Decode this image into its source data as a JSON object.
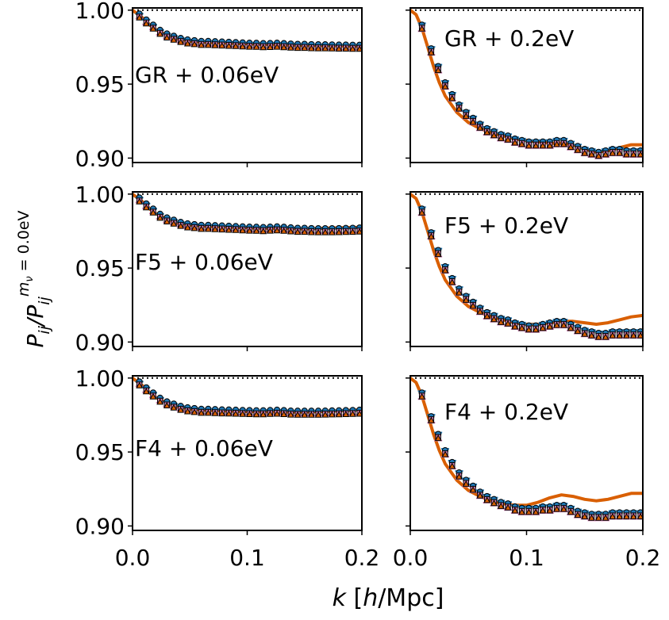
{
  "chart_data": {
    "type": "line",
    "xlabel": "k [h/Mpc]",
    "ylabel": "P_ij / P_ij^(m_nu = 0.0eV)",
    "xlim": [
      0.0,
      0.2
    ],
    "ylim": [
      0.897,
      1.0015
    ],
    "xticks": [
      "0.0",
      "0.1",
      "0.2"
    ],
    "yticks": [
      "1.00",
      "0.95",
      "0.90"
    ],
    "colors": {
      "curve": "#d95f02",
      "circle_markers": "#1f77b4",
      "square_markers": "#d47fb3",
      "triangle_markers": "#d95f02",
      "reference_line": "#000000"
    },
    "panels": [
      {
        "label": "GR + 0.06eV",
        "k": [
          0.0,
          0.005,
          0.01,
          0.015,
          0.02,
          0.03,
          0.04,
          0.05,
          0.07,
          0.09,
          0.11,
          0.13,
          0.15,
          0.17,
          0.2
        ],
        "ratio": [
          1.0,
          0.997,
          0.994,
          0.99,
          0.987,
          0.983,
          0.9805,
          0.979,
          0.978,
          0.9775,
          0.977,
          0.9765,
          0.976,
          0.976,
          0.9755
        ],
        "markers": [
          {
            "k": 0.006,
            "v": 0.9965
          },
          {
            "k": 0.012,
            "v": 0.9925
          },
          {
            "k": 0.018,
            "v": 0.989
          },
          {
            "k": 0.024,
            "v": 0.9855
          },
          {
            "k": 0.03,
            "v": 0.983
          },
          {
            "k": 0.036,
            "v": 0.9815
          },
          {
            "k": 0.042,
            "v": 0.98
          },
          {
            "k": 0.048,
            "v": 0.979
          },
          {
            "k": 0.054,
            "v": 0.9785
          },
          {
            "k": 0.06,
            "v": 0.978
          },
          {
            "k": 0.066,
            "v": 0.978
          },
          {
            "k": 0.072,
            "v": 0.9778
          },
          {
            "k": 0.078,
            "v": 0.9776
          },
          {
            "k": 0.084,
            "v": 0.9774
          },
          {
            "k": 0.09,
            "v": 0.9772
          },
          {
            "k": 0.096,
            "v": 0.977
          },
          {
            "k": 0.102,
            "v": 0.9768
          },
          {
            "k": 0.108,
            "v": 0.9767
          },
          {
            "k": 0.114,
            "v": 0.9765
          },
          {
            "k": 0.12,
            "v": 0.9766
          },
          {
            "k": 0.126,
            "v": 0.9768
          },
          {
            "k": 0.132,
            "v": 0.9765
          },
          {
            "k": 0.138,
            "v": 0.9762
          },
          {
            "k": 0.144,
            "v": 0.976
          },
          {
            "k": 0.15,
            "v": 0.976
          },
          {
            "k": 0.156,
            "v": 0.9758
          },
          {
            "k": 0.162,
            "v": 0.9757
          },
          {
            "k": 0.168,
            "v": 0.9757
          },
          {
            "k": 0.174,
            "v": 0.9756
          },
          {
            "k": 0.18,
            "v": 0.9755
          },
          {
            "k": 0.186,
            "v": 0.9755
          },
          {
            "k": 0.192,
            "v": 0.9754
          },
          {
            "k": 0.198,
            "v": 0.9754
          }
        ]
      },
      {
        "label": "GR + 0.2eV",
        "k": [
          0.0,
          0.005,
          0.01,
          0.015,
          0.02,
          0.025,
          0.03,
          0.04,
          0.05,
          0.06,
          0.07,
          0.08,
          0.09,
          0.1,
          0.11,
          0.12,
          0.13,
          0.14,
          0.15,
          0.16,
          0.17,
          0.18,
          0.19,
          0.2
        ],
        "ratio": [
          1.0,
          0.997,
          0.988,
          0.975,
          0.962,
          0.951,
          0.942,
          0.931,
          0.924,
          0.92,
          0.917,
          0.915,
          0.913,
          0.912,
          0.911,
          0.91,
          0.91,
          0.909,
          0.906,
          0.904,
          0.905,
          0.907,
          0.909,
          0.909
        ],
        "markers": [
          {
            "k": 0.01,
            "v": 0.989
          },
          {
            "k": 0.018,
            "v": 0.973
          },
          {
            "k": 0.024,
            "v": 0.961
          },
          {
            "k": 0.03,
            "v": 0.95
          },
          {
            "k": 0.036,
            "v": 0.942
          },
          {
            "k": 0.042,
            "v": 0.935
          },
          {
            "k": 0.048,
            "v": 0.93
          },
          {
            "k": 0.054,
            "v": 0.926
          },
          {
            "k": 0.06,
            "v": 0.922
          },
          {
            "k": 0.066,
            "v": 0.919
          },
          {
            "k": 0.072,
            "v": 0.917
          },
          {
            "k": 0.078,
            "v": 0.915
          },
          {
            "k": 0.084,
            "v": 0.914
          },
          {
            "k": 0.09,
            "v": 0.912
          },
          {
            "k": 0.096,
            "v": 0.911
          },
          {
            "k": 0.102,
            "v": 0.91
          },
          {
            "k": 0.108,
            "v": 0.91
          },
          {
            "k": 0.114,
            "v": 0.91
          },
          {
            "k": 0.12,
            "v": 0.91
          },
          {
            "k": 0.126,
            "v": 0.911
          },
          {
            "k": 0.132,
            "v": 0.911
          },
          {
            "k": 0.138,
            "v": 0.909
          },
          {
            "k": 0.144,
            "v": 0.907
          },
          {
            "k": 0.15,
            "v": 0.905
          },
          {
            "k": 0.156,
            "v": 0.904
          },
          {
            "k": 0.162,
            "v": 0.903
          },
          {
            "k": 0.168,
            "v": 0.904
          },
          {
            "k": 0.174,
            "v": 0.905
          },
          {
            "k": 0.18,
            "v": 0.905
          },
          {
            "k": 0.186,
            "v": 0.904
          },
          {
            "k": 0.192,
            "v": 0.904
          },
          {
            "k": 0.198,
            "v": 0.904
          }
        ]
      },
      {
        "label": "F5 + 0.06eV",
        "k": [
          0.0,
          0.005,
          0.01,
          0.015,
          0.02,
          0.03,
          0.04,
          0.05,
          0.07,
          0.09,
          0.11,
          0.13,
          0.15,
          0.17,
          0.2
        ],
        "ratio": [
          1.0,
          0.997,
          0.994,
          0.99,
          0.987,
          0.983,
          0.9805,
          0.979,
          0.978,
          0.9775,
          0.977,
          0.9768,
          0.9765,
          0.977,
          0.9775
        ],
        "markers": [
          {
            "k": 0.006,
            "v": 0.9965
          },
          {
            "k": 0.012,
            "v": 0.9925
          },
          {
            "k": 0.018,
            "v": 0.989
          },
          {
            "k": 0.024,
            "v": 0.9855
          },
          {
            "k": 0.03,
            "v": 0.983
          },
          {
            "k": 0.036,
            "v": 0.9815
          },
          {
            "k": 0.042,
            "v": 0.98
          },
          {
            "k": 0.048,
            "v": 0.979
          },
          {
            "k": 0.054,
            "v": 0.9785
          },
          {
            "k": 0.06,
            "v": 0.978
          },
          {
            "k": 0.066,
            "v": 0.978
          },
          {
            "k": 0.072,
            "v": 0.9778
          },
          {
            "k": 0.078,
            "v": 0.9776
          },
          {
            "k": 0.084,
            "v": 0.9774
          },
          {
            "k": 0.09,
            "v": 0.9772
          },
          {
            "k": 0.096,
            "v": 0.977
          },
          {
            "k": 0.102,
            "v": 0.9768
          },
          {
            "k": 0.108,
            "v": 0.9767
          },
          {
            "k": 0.114,
            "v": 0.9765
          },
          {
            "k": 0.12,
            "v": 0.9768
          },
          {
            "k": 0.126,
            "v": 0.977
          },
          {
            "k": 0.132,
            "v": 0.9767
          },
          {
            "k": 0.138,
            "v": 0.9763
          },
          {
            "k": 0.144,
            "v": 0.976
          },
          {
            "k": 0.15,
            "v": 0.976
          },
          {
            "k": 0.156,
            "v": 0.9758
          },
          {
            "k": 0.162,
            "v": 0.9757
          },
          {
            "k": 0.168,
            "v": 0.9757
          },
          {
            "k": 0.174,
            "v": 0.9757
          },
          {
            "k": 0.18,
            "v": 0.9758
          },
          {
            "k": 0.186,
            "v": 0.9759
          },
          {
            "k": 0.192,
            "v": 0.976
          },
          {
            "k": 0.198,
            "v": 0.9762
          }
        ]
      },
      {
        "label": "F5 + 0.2eV",
        "k": [
          0.0,
          0.005,
          0.01,
          0.015,
          0.02,
          0.025,
          0.03,
          0.04,
          0.05,
          0.06,
          0.07,
          0.08,
          0.09,
          0.1,
          0.11,
          0.12,
          0.13,
          0.14,
          0.15,
          0.16,
          0.17,
          0.18,
          0.19,
          0.2
        ],
        "ratio": [
          1.0,
          0.997,
          0.988,
          0.975,
          0.962,
          0.951,
          0.942,
          0.931,
          0.924,
          0.92,
          0.917,
          0.915,
          0.913,
          0.912,
          0.912,
          0.913,
          0.914,
          0.914,
          0.913,
          0.912,
          0.913,
          0.915,
          0.917,
          0.918
        ],
        "markers": [
          {
            "k": 0.01,
            "v": 0.989
          },
          {
            "k": 0.018,
            "v": 0.973
          },
          {
            "k": 0.024,
            "v": 0.961
          },
          {
            "k": 0.03,
            "v": 0.95
          },
          {
            "k": 0.036,
            "v": 0.942
          },
          {
            "k": 0.042,
            "v": 0.935
          },
          {
            "k": 0.048,
            "v": 0.93
          },
          {
            "k": 0.054,
            "v": 0.926
          },
          {
            "k": 0.06,
            "v": 0.922
          },
          {
            "k": 0.066,
            "v": 0.919
          },
          {
            "k": 0.072,
            "v": 0.917
          },
          {
            "k": 0.078,
            "v": 0.915
          },
          {
            "k": 0.084,
            "v": 0.914
          },
          {
            "k": 0.09,
            "v": 0.912
          },
          {
            "k": 0.096,
            "v": 0.911
          },
          {
            "k": 0.102,
            "v": 0.91
          },
          {
            "k": 0.108,
            "v": 0.91
          },
          {
            "k": 0.114,
            "v": 0.911
          },
          {
            "k": 0.12,
            "v": 0.912
          },
          {
            "k": 0.126,
            "v": 0.913
          },
          {
            "k": 0.132,
            "v": 0.913
          },
          {
            "k": 0.138,
            "v": 0.911
          },
          {
            "k": 0.144,
            "v": 0.909
          },
          {
            "k": 0.15,
            "v": 0.907
          },
          {
            "k": 0.156,
            "v": 0.906
          },
          {
            "k": 0.162,
            "v": 0.905
          },
          {
            "k": 0.168,
            "v": 0.905
          },
          {
            "k": 0.174,
            "v": 0.906
          },
          {
            "k": 0.18,
            "v": 0.906
          },
          {
            "k": 0.186,
            "v": 0.906
          },
          {
            "k": 0.192,
            "v": 0.906
          },
          {
            "k": 0.198,
            "v": 0.906
          }
        ]
      },
      {
        "label": "F4 + 0.06eV",
        "k": [
          0.0,
          0.005,
          0.01,
          0.015,
          0.02,
          0.03,
          0.04,
          0.05,
          0.07,
          0.09,
          0.11,
          0.13,
          0.15,
          0.17,
          0.2
        ],
        "ratio": [
          1.0,
          0.997,
          0.994,
          0.99,
          0.987,
          0.983,
          0.9805,
          0.979,
          0.978,
          0.9775,
          0.9772,
          0.977,
          0.977,
          0.9775,
          0.9785
        ],
        "markers": [
          {
            "k": 0.006,
            "v": 0.9965
          },
          {
            "k": 0.012,
            "v": 0.9925
          },
          {
            "k": 0.018,
            "v": 0.989
          },
          {
            "k": 0.024,
            "v": 0.9855
          },
          {
            "k": 0.03,
            "v": 0.983
          },
          {
            "k": 0.036,
            "v": 0.9815
          },
          {
            "k": 0.042,
            "v": 0.98
          },
          {
            "k": 0.048,
            "v": 0.979
          },
          {
            "k": 0.054,
            "v": 0.9785
          },
          {
            "k": 0.06,
            "v": 0.978
          },
          {
            "k": 0.066,
            "v": 0.978
          },
          {
            "k": 0.072,
            "v": 0.9778
          },
          {
            "k": 0.078,
            "v": 0.9776
          },
          {
            "k": 0.084,
            "v": 0.9775
          },
          {
            "k": 0.09,
            "v": 0.9774
          },
          {
            "k": 0.096,
            "v": 0.9772
          },
          {
            "k": 0.102,
            "v": 0.9771
          },
          {
            "k": 0.108,
            "v": 0.977
          },
          {
            "k": 0.114,
            "v": 0.977
          },
          {
            "k": 0.12,
            "v": 0.9772
          },
          {
            "k": 0.126,
            "v": 0.9774
          },
          {
            "k": 0.132,
            "v": 0.9771
          },
          {
            "k": 0.138,
            "v": 0.9768
          },
          {
            "k": 0.144,
            "v": 0.9767
          },
          {
            "k": 0.15,
            "v": 0.9767
          },
          {
            "k": 0.156,
            "v": 0.9767
          },
          {
            "k": 0.162,
            "v": 0.9767
          },
          {
            "k": 0.168,
            "v": 0.9768
          },
          {
            "k": 0.174,
            "v": 0.9769
          },
          {
            "k": 0.18,
            "v": 0.977
          },
          {
            "k": 0.186,
            "v": 0.9771
          },
          {
            "k": 0.192,
            "v": 0.9772
          },
          {
            "k": 0.198,
            "v": 0.9774
          }
        ]
      },
      {
        "label": "F4 + 0.2eV",
        "k": [
          0.0,
          0.005,
          0.01,
          0.015,
          0.02,
          0.025,
          0.03,
          0.04,
          0.05,
          0.06,
          0.07,
          0.08,
          0.09,
          0.1,
          0.11,
          0.12,
          0.13,
          0.14,
          0.15,
          0.16,
          0.17,
          0.18,
          0.19,
          0.2
        ],
        "ratio": [
          1.0,
          0.997,
          0.988,
          0.975,
          0.962,
          0.951,
          0.942,
          0.931,
          0.924,
          0.92,
          0.917,
          0.915,
          0.914,
          0.914,
          0.916,
          0.919,
          0.921,
          0.92,
          0.918,
          0.917,
          0.918,
          0.92,
          0.922,
          0.922
        ],
        "markers": [
          {
            "k": 0.01,
            "v": 0.989
          },
          {
            "k": 0.018,
            "v": 0.973
          },
          {
            "k": 0.024,
            "v": 0.961
          },
          {
            "k": 0.03,
            "v": 0.95
          },
          {
            "k": 0.036,
            "v": 0.942
          },
          {
            "k": 0.042,
            "v": 0.935
          },
          {
            "k": 0.048,
            "v": 0.93
          },
          {
            "k": 0.054,
            "v": 0.926
          },
          {
            "k": 0.06,
            "v": 0.922
          },
          {
            "k": 0.066,
            "v": 0.919
          },
          {
            "k": 0.072,
            "v": 0.917
          },
          {
            "k": 0.078,
            "v": 0.915
          },
          {
            "k": 0.084,
            "v": 0.914
          },
          {
            "k": 0.09,
            "v": 0.912
          },
          {
            "k": 0.096,
            "v": 0.911
          },
          {
            "k": 0.102,
            "v": 0.911
          },
          {
            "k": 0.108,
            "v": 0.911
          },
          {
            "k": 0.114,
            "v": 0.912
          },
          {
            "k": 0.12,
            "v": 0.912
          },
          {
            "k": 0.126,
            "v": 0.913
          },
          {
            "k": 0.132,
            "v": 0.913
          },
          {
            "k": 0.138,
            "v": 0.911
          },
          {
            "k": 0.144,
            "v": 0.909
          },
          {
            "k": 0.15,
            "v": 0.908
          },
          {
            "k": 0.156,
            "v": 0.907
          },
          {
            "k": 0.162,
            "v": 0.907
          },
          {
            "k": 0.168,
            "v": 0.907
          },
          {
            "k": 0.174,
            "v": 0.908
          },
          {
            "k": 0.18,
            "v": 0.908
          },
          {
            "k": 0.186,
            "v": 0.908
          },
          {
            "k": 0.192,
            "v": 0.908
          },
          {
            "k": 0.198,
            "v": 0.908
          }
        ]
      }
    ]
  }
}
